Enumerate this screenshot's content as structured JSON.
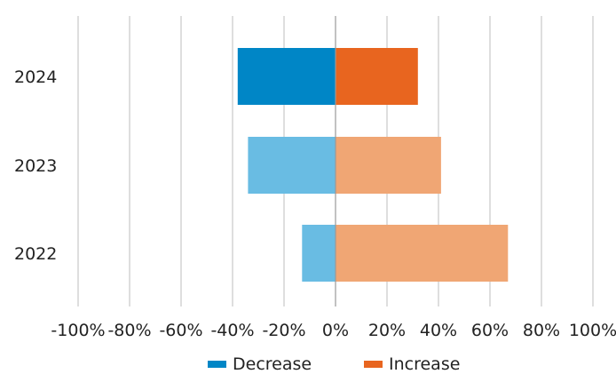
{
  "chart_data": {
    "type": "bar",
    "orientation": "horizontal",
    "stacked": "diverging",
    "categories": [
      "2024",
      "2023",
      "2022"
    ],
    "series": [
      {
        "name": "Decrease",
        "values": [
          -38,
          -34,
          -13
        ],
        "colors": [
          "#0086c6",
          "#69bce3",
          "#69bce3"
        ],
        "legend_color": "#0086c6"
      },
      {
        "name": "Increase",
        "values": [
          32,
          41,
          67
        ],
        "colors": [
          "#e8651f",
          "#f0a674",
          "#f0a674"
        ],
        "legend_color": "#e8651f"
      }
    ],
    "xlim": [
      -100,
      100
    ],
    "xticks": [
      -100,
      -80,
      -60,
      -40,
      -20,
      0,
      20,
      40,
      60,
      80,
      100
    ],
    "xtick_labels": [
      "-100%",
      "-80%",
      "-60%",
      "-40%",
      "-20%",
      "0%",
      "20%",
      "40%",
      "60%",
      "80%",
      "100%"
    ],
    "grid": true,
    "legend_position": "bottom",
    "title": "",
    "xlabel": "",
    "ylabel": ""
  }
}
